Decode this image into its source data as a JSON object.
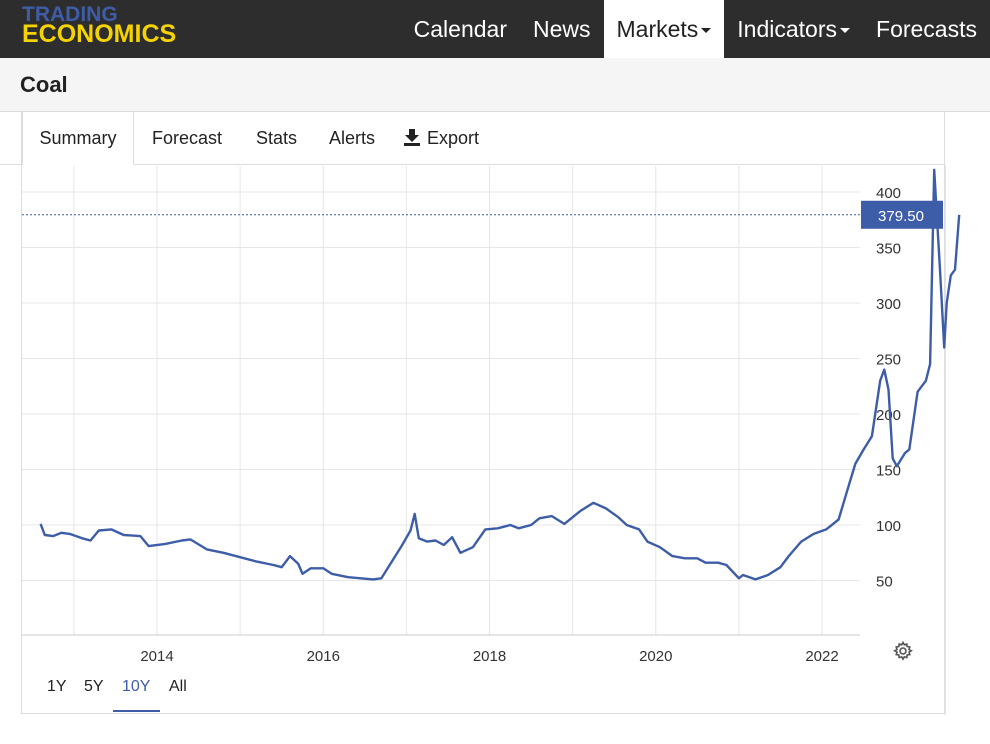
{
  "brand": {
    "line1": "TRADING",
    "line2": "ECONOMICS"
  },
  "nav": [
    {
      "label": "Calendar",
      "dropdown": false,
      "active": false
    },
    {
      "label": "News",
      "dropdown": false,
      "active": false
    },
    {
      "label": "Markets",
      "dropdown": true,
      "active": true
    },
    {
      "label": "Indicators",
      "dropdown": true,
      "active": false
    },
    {
      "label": "Forecasts",
      "dropdown": false,
      "active": false
    }
  ],
  "page": {
    "title": "Coal"
  },
  "tabs": [
    {
      "label": "Summary",
      "active": true
    },
    {
      "label": "Forecast",
      "active": false
    },
    {
      "label": "Stats",
      "active": false
    },
    {
      "label": "Alerts",
      "active": false
    },
    {
      "label": "Export",
      "active": false,
      "icon": "download-icon"
    }
  ],
  "ranges": [
    {
      "label": "1Y",
      "active": false
    },
    {
      "label": "5Y",
      "active": false
    },
    {
      "label": "10Y",
      "active": true
    },
    {
      "label": "All",
      "active": false
    }
  ],
  "colors": {
    "line": "#3e5da8",
    "accent": "#3e5da8",
    "logo_blue": "#3e5da8",
    "logo_yellow": "#f5d300"
  },
  "chart_data": {
    "type": "line",
    "current_value_label": "379.50",
    "current_value": 379.5,
    "y_ticks": [
      "50",
      "100",
      "150",
      "200",
      "250",
      "300",
      "350",
      "400"
    ],
    "x_ticks": [
      "2014",
      "2016",
      "2018",
      "2020",
      "2022"
    ],
    "ylim": [
      0,
      420
    ],
    "grid": true,
    "series": [
      {
        "values": [
          [
            2012.6,
            101
          ],
          [
            2012.65,
            91
          ],
          [
            2012.75,
            90
          ],
          [
            2012.85,
            93
          ],
          [
            2012.95,
            92
          ],
          [
            2013.1,
            88
          ],
          [
            2013.2,
            86
          ],
          [
            2013.3,
            95
          ],
          [
            2013.45,
            96
          ],
          [
            2013.6,
            91
          ],
          [
            2013.8,
            90
          ],
          [
            2013.9,
            81
          ],
          [
            2014.1,
            83
          ],
          [
            2014.3,
            86
          ],
          [
            2014.4,
            87
          ],
          [
            2014.6,
            78
          ],
          [
            2014.8,
            75
          ],
          [
            2015.0,
            71
          ],
          [
            2015.2,
            67
          ],
          [
            2015.4,
            64
          ],
          [
            2015.5,
            62
          ],
          [
            2015.6,
            72
          ],
          [
            2015.7,
            65
          ],
          [
            2015.75,
            56
          ],
          [
            2015.85,
            61
          ],
          [
            2016.0,
            61
          ],
          [
            2016.1,
            56
          ],
          [
            2016.3,
            53
          ],
          [
            2016.45,
            52
          ],
          [
            2016.6,
            51
          ],
          [
            2016.7,
            52
          ],
          [
            2016.85,
            70
          ],
          [
            2016.95,
            82
          ],
          [
            2017.05,
            95
          ],
          [
            2017.1,
            110
          ],
          [
            2017.15,
            88
          ],
          [
            2017.25,
            85
          ],
          [
            2017.35,
            86
          ],
          [
            2017.45,
            82
          ],
          [
            2017.55,
            89
          ],
          [
            2017.65,
            75
          ],
          [
            2017.8,
            80
          ],
          [
            2017.95,
            96
          ],
          [
            2018.1,
            97
          ],
          [
            2018.25,
            100
          ],
          [
            2018.35,
            97
          ],
          [
            2018.5,
            100
          ],
          [
            2018.6,
            106
          ],
          [
            2018.75,
            108
          ],
          [
            2018.9,
            101
          ],
          [
            2019.1,
            113
          ],
          [
            2019.25,
            120
          ],
          [
            2019.4,
            115
          ],
          [
            2019.55,
            107
          ],
          [
            2019.65,
            100
          ],
          [
            2019.8,
            96
          ],
          [
            2019.9,
            85
          ],
          [
            2020.05,
            80
          ],
          [
            2020.2,
            72
          ],
          [
            2020.35,
            70
          ],
          [
            2020.5,
            70
          ],
          [
            2020.6,
            66
          ],
          [
            2020.75,
            66
          ],
          [
            2020.85,
            64
          ],
          [
            2021.0,
            52
          ],
          [
            2021.05,
            55
          ],
          [
            2021.2,
            51
          ],
          [
            2021.35,
            55
          ],
          [
            2021.5,
            62
          ],
          [
            2021.6,
            72
          ],
          [
            2021.75,
            85
          ],
          [
            2021.9,
            92
          ],
          [
            2022.05,
            96
          ],
          [
            2022.2,
            105
          ],
          [
            2022.3,
            130
          ],
          [
            2022.4,
            155
          ],
          [
            2022.5,
            168
          ],
          [
            2022.6,
            180
          ],
          [
            2022.7,
            230
          ],
          [
            2022.75,
            240
          ],
          [
            2022.8,
            222
          ],
          [
            2022.85,
            160
          ],
          [
            2022.9,
            153
          ],
          [
            2023.0,
            165
          ],
          [
            2023.05,
            168
          ],
          [
            2023.15,
            220
          ],
          [
            2023.25,
            230
          ],
          [
            2023.3,
            245
          ],
          [
            2023.35,
            420
          ],
          [
            2023.42,
            330
          ],
          [
            2023.47,
            260
          ],
          [
            2023.5,
            300
          ],
          [
            2023.55,
            325
          ],
          [
            2023.6,
            330
          ],
          [
            2023.65,
            379.5
          ]
        ]
      }
    ]
  }
}
